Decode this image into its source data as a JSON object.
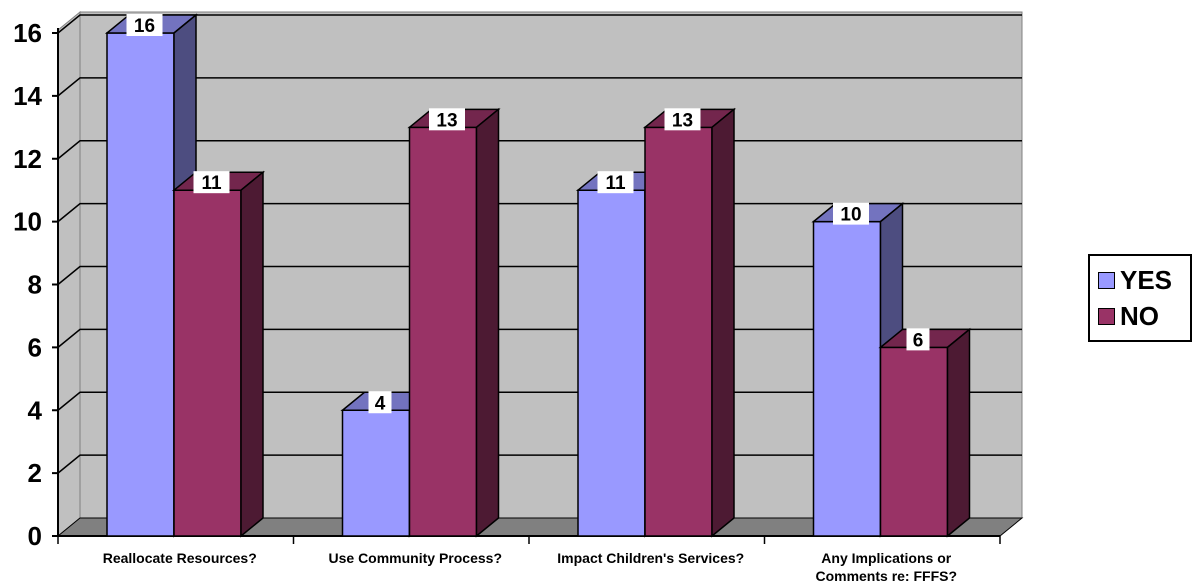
{
  "chart_data": {
    "type": "bar",
    "categories": [
      "Reallocate Resources?",
      "Use Community Process?",
      "Impact Children's Services?",
      "Any Implications or Comments re: FFFS?"
    ],
    "series": [
      {
        "name": "YES",
        "values": [
          16,
          4,
          11,
          10
        ],
        "color": "#9999ff"
      },
      {
        "name": "NO",
        "values": [
          11,
          13,
          13,
          6
        ],
        "color": "#993366"
      }
    ],
    "ylim": [
      0,
      16
    ],
    "yticks": [
      0,
      2,
      4,
      6,
      8,
      10,
      12,
      14,
      16
    ],
    "grid": true,
    "legend_position": "right",
    "title": "",
    "xlabel": "",
    "ylabel": ""
  }
}
